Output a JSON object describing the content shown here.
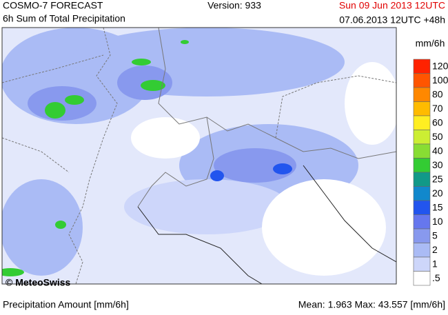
{
  "header": {
    "title": "COSMO-7 FORECAST",
    "subtitle": "6h Sum of Total Precipitation",
    "version": "Version: 933",
    "valid": "Sun 09 Jun 2013 12UTC",
    "run": "07.06.2013 12UTC +48h"
  },
  "map": {
    "copyright": "© MeteoSwiss"
  },
  "legend": {
    "unit": "mm/6h",
    "levels": [
      {
        "label": "120",
        "color": "#ff2200"
      },
      {
        "label": "100",
        "color": "#ff5500"
      },
      {
        "label": "80",
        "color": "#ff8800"
      },
      {
        "label": "70",
        "color": "#ffbb00"
      },
      {
        "label": "60",
        "color": "#ffee22"
      },
      {
        "label": "50",
        "color": "#ccee33"
      },
      {
        "label": "40",
        "color": "#88dd33"
      },
      {
        "label": "30",
        "color": "#33cc33"
      },
      {
        "label": "25",
        "color": "#119988"
      },
      {
        "label": "20",
        "color": "#1188cc"
      },
      {
        "label": "15",
        "color": "#2255ee"
      },
      {
        "label": "10",
        "color": "#6677ee"
      },
      {
        "label": "5",
        "color": "#8899ee"
      },
      {
        "label": "2",
        "color": "#aabbf5"
      },
      {
        "label": "1",
        "color": "#cdd6fa"
      },
      {
        "label": ".5",
        "color": "#ffffff"
      }
    ]
  },
  "footer": {
    "left": "Precipitation Amount [mm/6h]",
    "right": "Mean:  1.963 Max: 43.557 [mm/6h]"
  }
}
